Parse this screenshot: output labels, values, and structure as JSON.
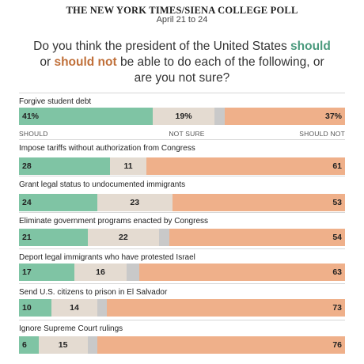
{
  "header": {
    "source": "THE NEW YORK TIMES/SIENA COLLEGE POLL",
    "dates": "April 21 to 24"
  },
  "question": {
    "part1": "Do you think the president of the United States ",
    "should": "should",
    "or": " or ",
    "should_not": "should not",
    "part2": " be able to do each of the following, or are you not sure?"
  },
  "legend": {
    "should": "SHOULD",
    "not_sure": "NOT SURE",
    "should_not": "SHOULD NOT"
  },
  "colors": {
    "should": "#7fc4a4",
    "not_sure": "#e4dbd1",
    "unlabeled_gap": "#c9c9c9",
    "should_not": "#efb08a"
  },
  "chart_data": {
    "type": "bar",
    "orientation": "horizontal",
    "stacked": true,
    "unit": "percent",
    "categories": [
      "Forgive student debt",
      "Impose tariffs without authorization from Congress",
      "Grant legal status to undocumented immigrants",
      "Eliminate government programs enacted by Congress",
      "Deport legal immigrants who have protested Israel",
      "Send U.S. citizens to prison in El Salvador",
      "Ignore Supreme Court rulings"
    ],
    "series": [
      {
        "name": "SHOULD",
        "values": [
          41,
          28,
          24,
          21,
          17,
          10,
          6
        ]
      },
      {
        "name": "NOT SURE",
        "values": [
          19,
          11,
          23,
          22,
          16,
          14,
          15
        ]
      },
      {
        "name": "SHOULD NOT",
        "values": [
          37,
          61,
          53,
          54,
          63,
          73,
          76
        ]
      }
    ],
    "value_labels": [
      [
        "41%",
        "19%",
        "37%"
      ],
      [
        "28",
        "11",
        "61"
      ],
      [
        "24",
        "23",
        "53"
      ],
      [
        "21",
        "22",
        "54"
      ],
      [
        "17",
        "16",
        "63"
      ],
      [
        "10",
        "14",
        "73"
      ],
      [
        "6",
        "15",
        "76"
      ]
    ],
    "xlim": [
      0,
      100
    ],
    "legend_placement": "below first bar"
  }
}
